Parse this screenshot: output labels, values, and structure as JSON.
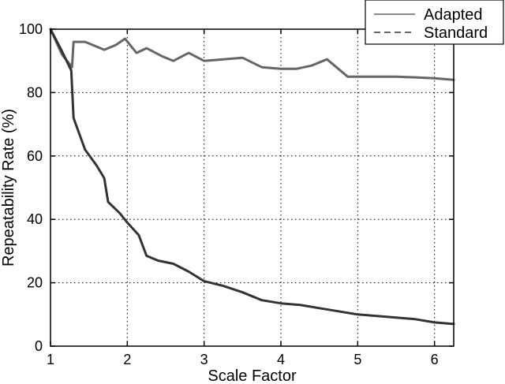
{
  "chart_data": {
    "type": "line",
    "title": "",
    "xlabel": "Scale Factor",
    "ylabel": "Repeatability Rate (%)",
    "xlim": [
      1,
      6.25
    ],
    "ylim": [
      0,
      100
    ],
    "xticks": [
      1,
      2,
      3,
      4,
      5,
      6
    ],
    "yticks": [
      0,
      20,
      40,
      60,
      80,
      100
    ],
    "grid": true,
    "legend_position": "top-right",
    "series": [
      {
        "name": "Adapted",
        "color": "#666666",
        "style": "solid",
        "x": [
          1.0,
          1.15,
          1.28,
          1.3,
          1.33,
          1.45,
          1.7,
          1.85,
          1.97,
          2.12,
          2.25,
          2.45,
          2.6,
          2.8,
          3.0,
          3.25,
          3.5,
          3.75,
          4.0,
          4.2,
          4.4,
          4.6,
          4.87,
          5.0,
          5.25,
          5.5,
          5.75,
          6.0,
          6.25
        ],
        "y": [
          100,
          92,
          88,
          96,
          96,
          96,
          93.5,
          95,
          97,
          92.5,
          94,
          91.5,
          90,
          92.5,
          90,
          90.5,
          91,
          88,
          87.5,
          87.5,
          88.5,
          90.5,
          85,
          85,
          85,
          85,
          84.8,
          84.5,
          84
        ]
      },
      {
        "name": "Standard",
        "color": "#333333",
        "style": "dashed",
        "x": [
          1.0,
          1.15,
          1.27,
          1.3,
          1.33,
          1.45,
          1.6,
          1.7,
          1.75,
          1.9,
          2.0,
          2.15,
          2.25,
          2.4,
          2.6,
          2.8,
          3.0,
          3.25,
          3.5,
          3.75,
          4.0,
          4.25,
          4.5,
          4.75,
          5.0,
          5.25,
          5.5,
          5.75,
          6.0,
          6.25
        ],
        "y": [
          100,
          93,
          87,
          72,
          70,
          62,
          57,
          53,
          45.5,
          42,
          39,
          35,
          28.5,
          27,
          26,
          23.5,
          20.5,
          19,
          17,
          14.5,
          13.5,
          13,
          12,
          11,
          10,
          9.5,
          9,
          8.5,
          7.5,
          7
        ]
      }
    ]
  }
}
